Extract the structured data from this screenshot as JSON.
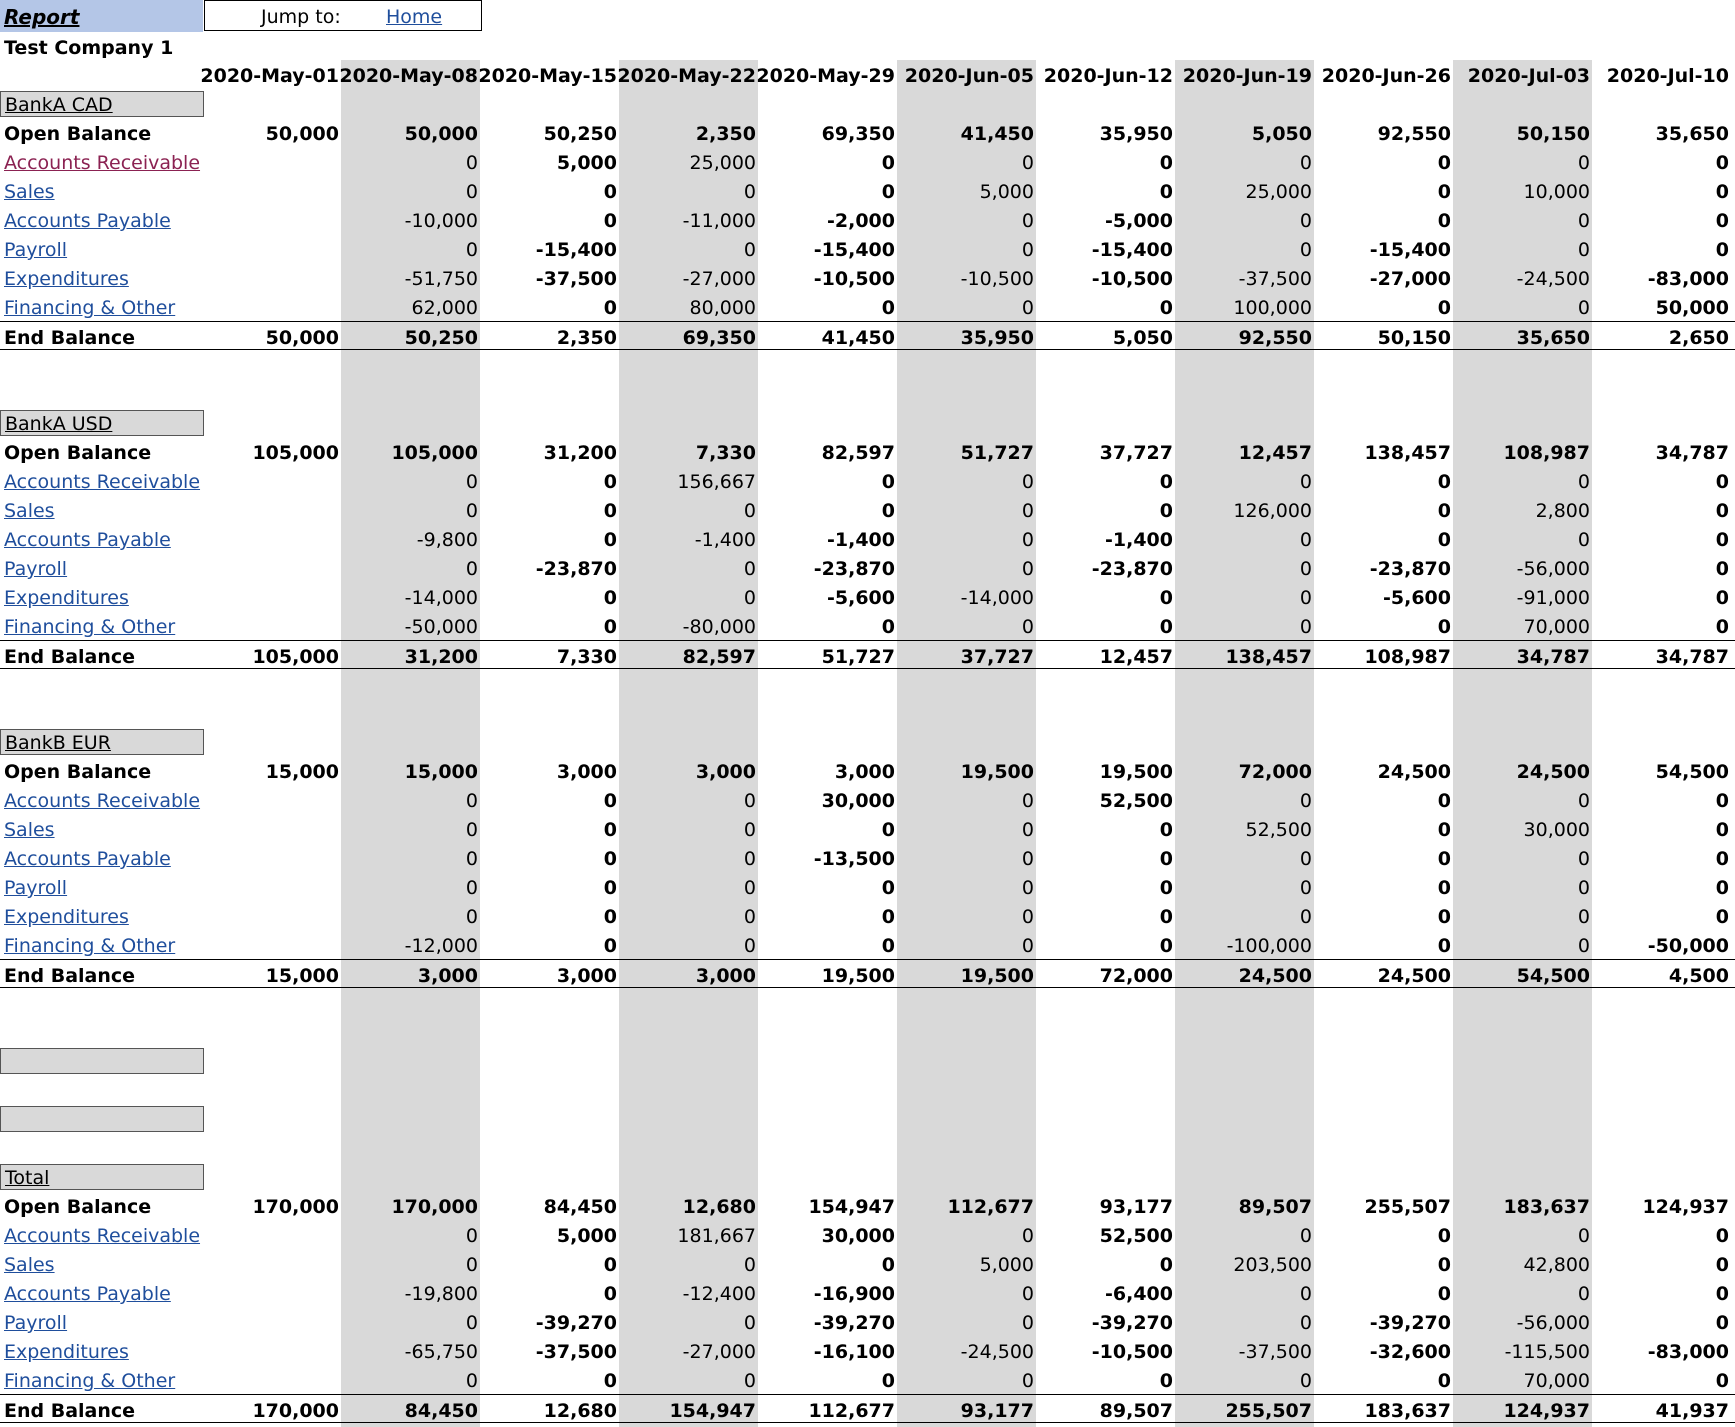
{
  "header": {
    "report_label": "Report",
    "jump_label": "Jump to:",
    "home_link": "Home",
    "company": "Test Company 1"
  },
  "dates": [
    "2020-May-01",
    "2020-May-08",
    "2020-May-15",
    "2020-May-22",
    "2020-May-29",
    "2020-Jun-05",
    "2020-Jun-12",
    "2020-Jun-19",
    "2020-Jun-26",
    "2020-Jul-03",
    "2020-Jul-10"
  ],
  "sections": [
    {
      "title": "BankA CAD",
      "rows": [
        {
          "label": "Open Balance",
          "type": "open",
          "values": [
            "50,000",
            "50,000",
            "50,250",
            "2,350",
            "69,350",
            "41,450",
            "35,950",
            "5,050",
            "92,550",
            "50,150",
            "35,650"
          ]
        },
        {
          "label": "Accounts Receivable",
          "type": "visited",
          "values": [
            "",
            "0",
            "5,000",
            "25,000",
            "0",
            "0",
            "0",
            "0",
            "0",
            "0",
            "0"
          ]
        },
        {
          "label": "Sales",
          "type": "link",
          "values": [
            "",
            "0",
            "0",
            "0",
            "0",
            "5,000",
            "0",
            "25,000",
            "0",
            "10,000",
            "0"
          ]
        },
        {
          "label": "Accounts Payable",
          "type": "link",
          "values": [
            "",
            "-10,000",
            "0",
            "-11,000",
            "-2,000",
            "0",
            "-5,000",
            "0",
            "0",
            "0",
            "0"
          ]
        },
        {
          "label": "Payroll",
          "type": "link",
          "values": [
            "",
            "0",
            "-15,400",
            "0",
            "-15,400",
            "0",
            "-15,400",
            "0",
            "-15,400",
            "0",
            "0"
          ]
        },
        {
          "label": "Expenditures",
          "type": "link",
          "values": [
            "",
            "-51,750",
            "-37,500",
            "-27,000",
            "-10,500",
            "-10,500",
            "-10,500",
            "-37,500",
            "-27,000",
            "-24,500",
            "-83,000"
          ]
        },
        {
          "label": "Financing & Other",
          "type": "link",
          "values": [
            "",
            "62,000",
            "0",
            "80,000",
            "0",
            "0",
            "0",
            "100,000",
            "0",
            "0",
            "50,000"
          ]
        },
        {
          "label": "End Balance",
          "type": "end",
          "values": [
            "50,000",
            "50,250",
            "2,350",
            "69,350",
            "41,450",
            "35,950",
            "5,050",
            "92,550",
            "50,150",
            "35,650",
            "2,650"
          ]
        }
      ]
    },
    {
      "title": "BankA USD",
      "rows": [
        {
          "label": "Open Balance",
          "type": "open",
          "values": [
            "105,000",
            "105,000",
            "31,200",
            "7,330",
            "82,597",
            "51,727",
            "37,727",
            "12,457",
            "138,457",
            "108,987",
            "34,787"
          ]
        },
        {
          "label": "Accounts Receivable",
          "type": "link",
          "values": [
            "",
            "0",
            "0",
            "156,667",
            "0",
            "0",
            "0",
            "0",
            "0",
            "0",
            "0"
          ]
        },
        {
          "label": "Sales",
          "type": "link",
          "values": [
            "",
            "0",
            "0",
            "0",
            "0",
            "0",
            "0",
            "126,000",
            "0",
            "2,800",
            "0"
          ]
        },
        {
          "label": "Accounts Payable",
          "type": "link",
          "values": [
            "",
            "-9,800",
            "0",
            "-1,400",
            "-1,400",
            "0",
            "-1,400",
            "0",
            "0",
            "0",
            "0"
          ]
        },
        {
          "label": "Payroll",
          "type": "link",
          "values": [
            "",
            "0",
            "-23,870",
            "0",
            "-23,870",
            "0",
            "-23,870",
            "0",
            "-23,870",
            "-56,000",
            "0"
          ]
        },
        {
          "label": "Expenditures",
          "type": "link",
          "values": [
            "",
            "-14,000",
            "0",
            "0",
            "-5,600",
            "-14,000",
            "0",
            "0",
            "-5,600",
            "-91,000",
            "0"
          ]
        },
        {
          "label": "Financing & Other",
          "type": "link",
          "values": [
            "",
            "-50,000",
            "0",
            "-80,000",
            "0",
            "0",
            "0",
            "0",
            "0",
            "70,000",
            "0"
          ]
        },
        {
          "label": "End Balance",
          "type": "end",
          "values": [
            "105,000",
            "31,200",
            "7,330",
            "82,597",
            "51,727",
            "37,727",
            "12,457",
            "138,457",
            "108,987",
            "34,787",
            "34,787"
          ]
        }
      ]
    },
    {
      "title": "BankB EUR",
      "rows": [
        {
          "label": "Open Balance",
          "type": "open",
          "values": [
            "15,000",
            "15,000",
            "3,000",
            "3,000",
            "3,000",
            "19,500",
            "19,500",
            "72,000",
            "24,500",
            "24,500",
            "54,500"
          ]
        },
        {
          "label": "Accounts Receivable",
          "type": "link",
          "values": [
            "",
            "0",
            "0",
            "0",
            "30,000",
            "0",
            "52,500",
            "0",
            "0",
            "0",
            "0"
          ]
        },
        {
          "label": "Sales",
          "type": "link",
          "values": [
            "",
            "0",
            "0",
            "0",
            "0",
            "0",
            "0",
            "52,500",
            "0",
            "30,000",
            "0"
          ]
        },
        {
          "label": "Accounts Payable",
          "type": "link",
          "values": [
            "",
            "0",
            "0",
            "0",
            "-13,500",
            "0",
            "0",
            "0",
            "0",
            "0",
            "0"
          ]
        },
        {
          "label": "Payroll",
          "type": "link",
          "values": [
            "",
            "0",
            "0",
            "0",
            "0",
            "0",
            "0",
            "0",
            "0",
            "0",
            "0"
          ]
        },
        {
          "label": "Expenditures",
          "type": "link",
          "values": [
            "",
            "0",
            "0",
            "0",
            "0",
            "0",
            "0",
            "0",
            "0",
            "0",
            "0"
          ]
        },
        {
          "label": "Financing & Other",
          "type": "link",
          "values": [
            "",
            "-12,000",
            "0",
            "0",
            "0",
            "0",
            "0",
            "-100,000",
            "0",
            "0",
            "-50,000"
          ]
        },
        {
          "label": "End Balance",
          "type": "end",
          "values": [
            "15,000",
            "3,000",
            "3,000",
            "3,000",
            "19,500",
            "19,500",
            "72,000",
            "24,500",
            "24,500",
            "54,500",
            "4,500"
          ]
        }
      ]
    },
    {
      "title": "Total",
      "rows": [
        {
          "label": "Open Balance",
          "type": "open",
          "values": [
            "170,000",
            "170,000",
            "84,450",
            "12,680",
            "154,947",
            "112,677",
            "93,177",
            "89,507",
            "255,507",
            "183,637",
            "124,937"
          ]
        },
        {
          "label": "Accounts Receivable",
          "type": "link",
          "values": [
            "",
            "0",
            "5,000",
            "181,667",
            "30,000",
            "0",
            "52,500",
            "0",
            "0",
            "0",
            "0"
          ]
        },
        {
          "label": "Sales",
          "type": "link",
          "values": [
            "",
            "0",
            "0",
            "0",
            "0",
            "5,000",
            "0",
            "203,500",
            "0",
            "42,800",
            "0"
          ]
        },
        {
          "label": "Accounts Payable",
          "type": "link",
          "values": [
            "",
            "-19,800",
            "0",
            "-12,400",
            "-16,900",
            "0",
            "-6,400",
            "0",
            "0",
            "0",
            "0"
          ]
        },
        {
          "label": "Payroll",
          "type": "link",
          "values": [
            "",
            "0",
            "-39,270",
            "0",
            "-39,270",
            "0",
            "-39,270",
            "0",
            "-39,270",
            "-56,000",
            "0"
          ]
        },
        {
          "label": "Expenditures",
          "type": "link",
          "values": [
            "",
            "-65,750",
            "-37,500",
            "-27,000",
            "-16,100",
            "-24,500",
            "-10,500",
            "-37,500",
            "-32,600",
            "-115,500",
            "-83,000"
          ]
        },
        {
          "label": "Financing & Other",
          "type": "link",
          "values": [
            "",
            "0",
            "0",
            "0",
            "0",
            "0",
            "0",
            "0",
            "0",
            "70,000",
            "0"
          ]
        },
        {
          "label": "End Balance",
          "type": "end",
          "values": [
            "170,000",
            "84,450",
            "12,680",
            "154,947",
            "112,677",
            "93,177",
            "89,507",
            "255,507",
            "183,637",
            "124,937",
            "41,937"
          ]
        }
      ]
    }
  ]
}
